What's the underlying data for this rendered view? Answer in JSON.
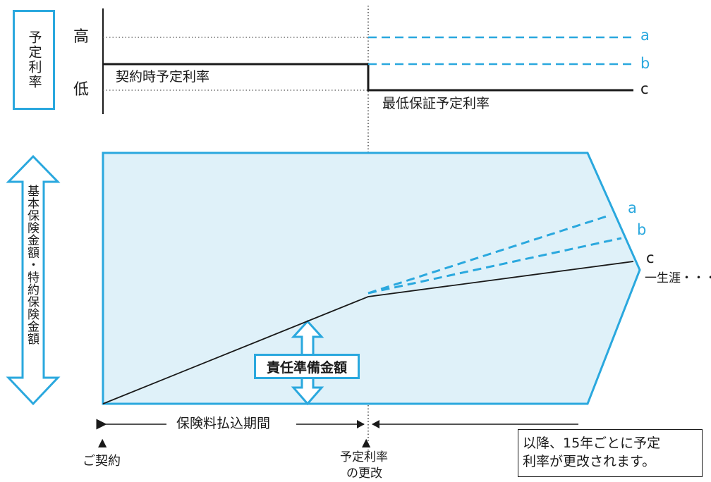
{
  "colors": {
    "accent": "#2aa8de",
    "fill": "#dff1f9",
    "ink": "#1a1a1a"
  },
  "top_panel": {
    "axis_label": "予定利率",
    "high": "高",
    "low": "低",
    "contract_rate_label": "契約時予定利率",
    "min_rate_label": "最低保証予定利率",
    "series": [
      "a",
      "b",
      "c"
    ]
  },
  "bottom_panel": {
    "axis_label": "基本保険金額・特約保険金額",
    "reserve_label": "責任準備金額",
    "lifetime_label": "一生涯・・・",
    "series": [
      "a",
      "b",
      "c"
    ]
  },
  "timeline": {
    "premium_period_label": "保険料払込期間",
    "contract_label": "ご契約",
    "rate_change_label_1": "予定利率",
    "rate_change_label_2": "の更改",
    "marker": "▲",
    "note_line1": "以降、15年ごとに予定",
    "note_line2": "利率が更改されます。"
  }
}
